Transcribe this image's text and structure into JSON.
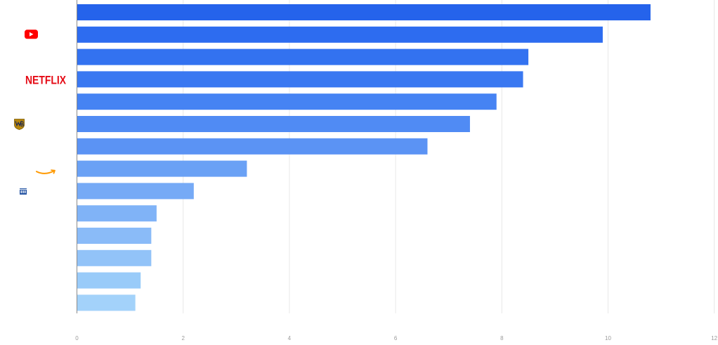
{
  "chart_data": {
    "type": "bar",
    "orientation": "horizontal",
    "title": "",
    "xlabel": "",
    "ylabel": "",
    "xlim": [
      0,
      12
    ],
    "x_ticks": [
      0,
      2,
      4,
      6,
      8,
      10,
      12
    ],
    "grid": true,
    "legend": "none",
    "categories": [
      {
        "label": "",
        "logo": ""
      },
      {
        "label": "",
        "logo": "youtube-logo"
      },
      {
        "label": "",
        "logo": ""
      },
      {
        "label": "NETFLIX",
        "logo": "netflix-logo"
      },
      {
        "label": "",
        "logo": ""
      },
      {
        "label": "",
        "logo": "warner-bros-logo"
      },
      {
        "label": "",
        "logo": ""
      },
      {
        "label": "",
        "logo": "amazon-logo"
      },
      {
        "label": "",
        "logo": "building-logo"
      },
      {
        "label": "",
        "logo": ""
      },
      {
        "label": "",
        "logo": ""
      },
      {
        "label": "",
        "logo": ""
      },
      {
        "label": "",
        "logo": ""
      },
      {
        "label": "",
        "logo": ""
      }
    ],
    "values": [
      10.8,
      9.9,
      8.5,
      8.4,
      7.9,
      7.4,
      6.6,
      3.2,
      2.2,
      1.5,
      1.4,
      1.4,
      1.2,
      1.1
    ],
    "bar_colors": [
      "#2563eb",
      "#2d6cf0",
      "#3372f0",
      "#3a78f1",
      "#4683f3",
      "#508bf4",
      "#5b93f4",
      "#6aa1f5",
      "#76aaf6",
      "#80b3f7",
      "#8abbf8",
      "#92c3f8",
      "#99cbf9",
      "#a3d2fa"
    ],
    "colors": {
      "grid": "#e8e8e8",
      "axis": "#8a8a8a",
      "tick_text": "#9a9a9a",
      "youtube": "#ff0000",
      "netflix": "#e50914",
      "warner": "#b8860b",
      "amazon": "#ff9900",
      "building": "#1e4fa0"
    }
  }
}
